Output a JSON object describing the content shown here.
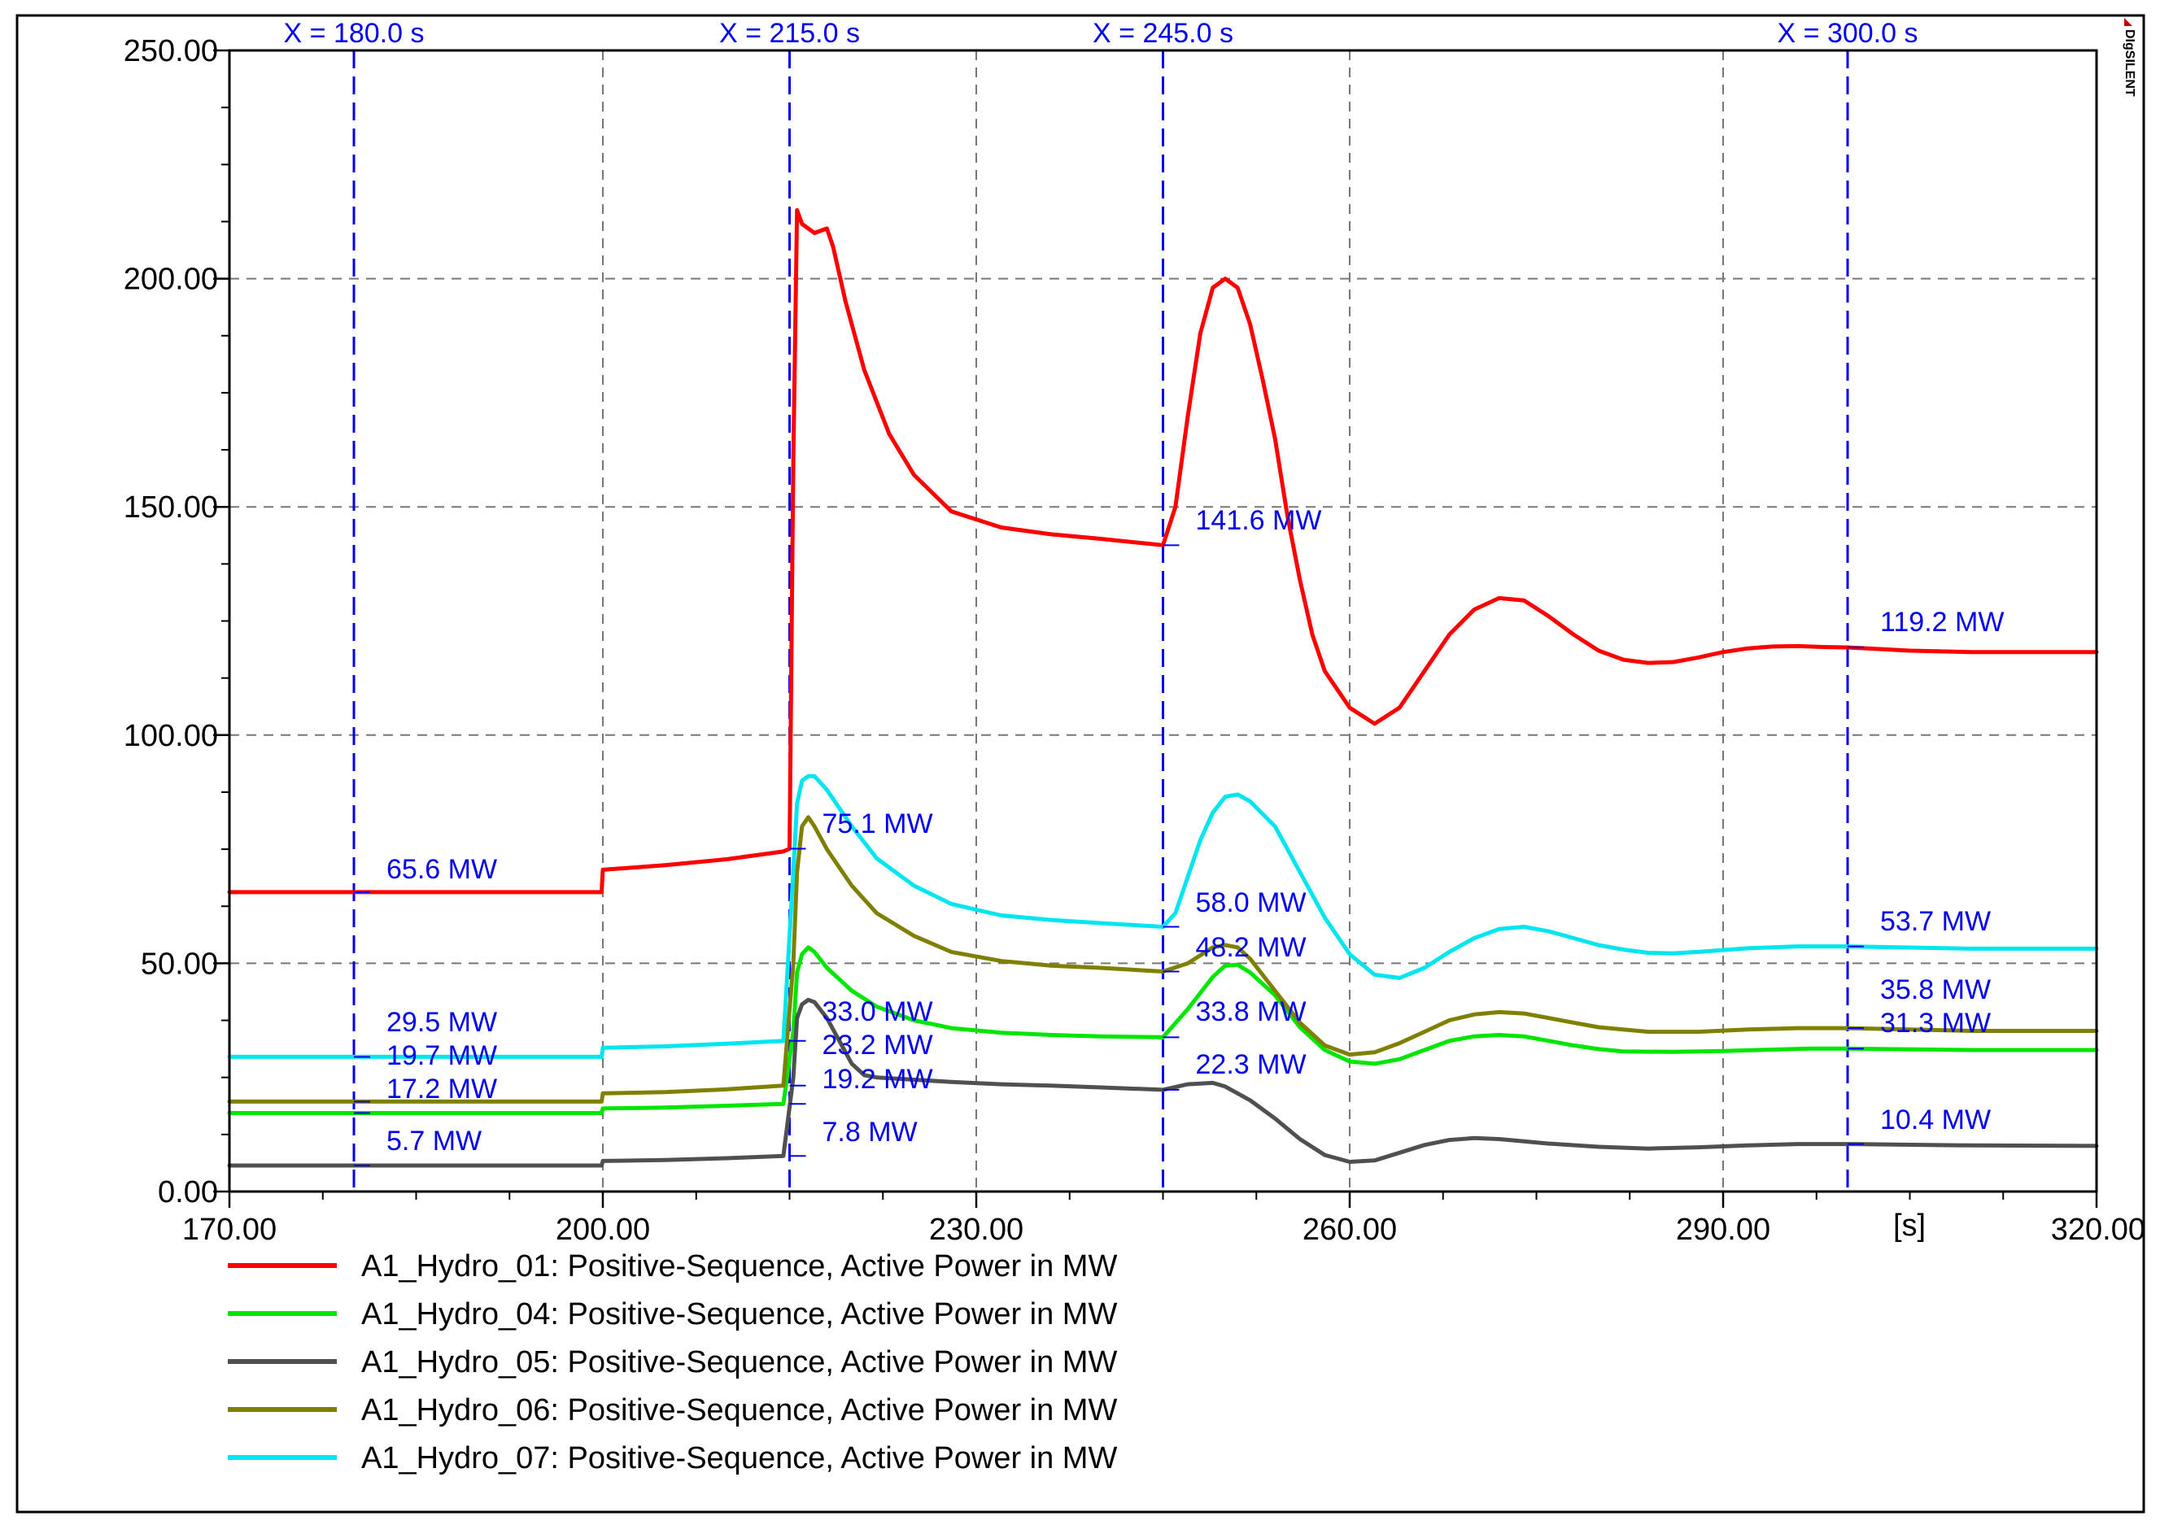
{
  "brand": "DIgSILENT",
  "x_unit_label": "[s]",
  "chart_data": {
    "type": "line",
    "title": "",
    "xlabel": "[s]",
    "ylabel": "",
    "xlim": [
      170,
      320
    ],
    "ylim": [
      0,
      250
    ],
    "x_ticks": [
      170,
      200,
      230,
      260,
      290,
      320
    ],
    "x_tick_labels": [
      "170.00",
      "200.00",
      "230.00",
      "260.00",
      "290.00",
      "320.00"
    ],
    "y_ticks": [
      0,
      50,
      100,
      150,
      200,
      250
    ],
    "y_tick_labels": [
      "0.00",
      "50.00",
      "100.00",
      "150.00",
      "200.00",
      "250.00"
    ],
    "grid": true,
    "legend_position": "bottom",
    "cursors": [
      {
        "x": 180,
        "label": "X =  180.0 s"
      },
      {
        "x": 215,
        "label": "X =  215.0 s"
      },
      {
        "x": 245,
        "label": "X =  245.0 s"
      },
      {
        "x": 300,
        "label": "X =  300.0 s"
      }
    ],
    "series": [
      {
        "name": "A1_Hydro_01: Positive-Sequence, Active Power in MW",
        "color": "#ff0000",
        "points": [
          [
            170,
            65.6
          ],
          [
            180,
            65.6
          ],
          [
            199.9,
            65.6
          ],
          [
            200,
            70.5
          ],
          [
            205,
            71.5
          ],
          [
            210,
            72.8
          ],
          [
            214.5,
            74.5
          ],
          [
            215,
            75.1
          ],
          [
            215.3,
            160
          ],
          [
            215.6,
            215
          ],
          [
            216,
            212
          ],
          [
            217,
            210
          ],
          [
            218,
            211
          ],
          [
            218.5,
            207
          ],
          [
            219.5,
            195
          ],
          [
            221,
            180
          ],
          [
            223,
            166
          ],
          [
            225,
            157
          ],
          [
            228,
            149
          ],
          [
            232,
            145.5
          ],
          [
            236,
            144
          ],
          [
            240,
            143
          ],
          [
            245,
            141.6
          ],
          [
            246,
            150
          ],
          [
            247,
            170
          ],
          [
            248,
            188
          ],
          [
            249,
            198
          ],
          [
            250,
            200
          ],
          [
            251,
            198
          ],
          [
            252,
            190
          ],
          [
            253,
            178
          ],
          [
            254,
            165
          ],
          [
            255,
            148
          ],
          [
            256,
            134
          ],
          [
            257,
            122
          ],
          [
            258,
            114
          ],
          [
            260,
            106
          ],
          [
            262,
            102.5
          ],
          [
            264,
            106
          ],
          [
            266,
            114
          ],
          [
            268,
            122
          ],
          [
            270,
            127.5
          ],
          [
            272,
            130
          ],
          [
            274,
            129.5
          ],
          [
            276,
            126
          ],
          [
            278,
            122
          ],
          [
            280,
            118.5
          ],
          [
            282,
            116.5
          ],
          [
            284,
            115.8
          ],
          [
            286,
            116
          ],
          [
            288,
            117
          ],
          [
            290,
            118.2
          ],
          [
            292,
            119
          ],
          [
            294,
            119.4
          ],
          [
            296,
            119.5
          ],
          [
            298,
            119.3
          ],
          [
            300,
            119.2
          ],
          [
            305,
            118.5
          ],
          [
            310,
            118.2
          ],
          [
            320,
            118.2
          ]
        ]
      },
      {
        "name": "A1_Hydro_04: Positive-Sequence, Active Power in MW",
        "color": "#00e600",
        "points": [
          [
            170,
            17.2
          ],
          [
            180,
            17.2
          ],
          [
            199.9,
            17.2
          ],
          [
            200,
            18.2
          ],
          [
            205,
            18.4
          ],
          [
            210,
            18.8
          ],
          [
            214.5,
            19.2
          ],
          [
            215.3,
            35
          ],
          [
            215.6,
            48
          ],
          [
            216,
            52
          ],
          [
            216.5,
            53.5
          ],
          [
            217,
            52.5
          ],
          [
            218,
            49
          ],
          [
            220,
            44
          ],
          [
            222,
            40.5
          ],
          [
            225,
            37.5
          ],
          [
            228,
            35.8
          ],
          [
            232,
            34.8
          ],
          [
            236,
            34.3
          ],
          [
            240,
            34
          ],
          [
            245,
            33.8
          ],
          [
            247,
            40
          ],
          [
            249,
            47
          ],
          [
            250,
            49.5
          ],
          [
            251,
            49.7
          ],
          [
            252,
            48
          ],
          [
            254,
            43
          ],
          [
            256,
            36
          ],
          [
            258,
            31
          ],
          [
            260,
            28.5
          ],
          [
            262,
            28
          ],
          [
            264,
            29
          ],
          [
            266,
            31
          ],
          [
            268,
            33
          ],
          [
            270,
            34
          ],
          [
            272,
            34.3
          ],
          [
            274,
            34
          ],
          [
            276,
            33
          ],
          [
            278,
            32
          ],
          [
            280,
            31.2
          ],
          [
            282,
            30.7
          ],
          [
            286,
            30.6
          ],
          [
            290,
            30.8
          ],
          [
            294,
            31.1
          ],
          [
            297,
            31.3
          ],
          [
            300,
            31.3
          ],
          [
            310,
            31
          ],
          [
            320,
            31
          ]
        ]
      },
      {
        "name": "A1_Hydro_05: Positive-Sequence, Active Power in MW",
        "color": "#505050",
        "points": [
          [
            170,
            5.7
          ],
          [
            180,
            5.7
          ],
          [
            199.9,
            5.7
          ],
          [
            200,
            6.7
          ],
          [
            205,
            6.9
          ],
          [
            210,
            7.3
          ],
          [
            214.5,
            7.8
          ],
          [
            215.3,
            25
          ],
          [
            215.6,
            38
          ],
          [
            216,
            41
          ],
          [
            216.5,
            42
          ],
          [
            217,
            41.5
          ],
          [
            218,
            38
          ],
          [
            219,
            33
          ],
          [
            220,
            28
          ],
          [
            221,
            25.5
          ],
          [
            222,
            25
          ],
          [
            225,
            24.5
          ],
          [
            228,
            24
          ],
          [
            232,
            23.5
          ],
          [
            236,
            23.2
          ],
          [
            240,
            22.8
          ],
          [
            245,
            22.3
          ],
          [
            247,
            23.5
          ],
          [
            249,
            23.8
          ],
          [
            250,
            23
          ],
          [
            252,
            20
          ],
          [
            254,
            16
          ],
          [
            256,
            11.5
          ],
          [
            258,
            8
          ],
          [
            260,
            6.5
          ],
          [
            262,
            6.8
          ],
          [
            264,
            8.5
          ],
          [
            266,
            10.2
          ],
          [
            268,
            11.3
          ],
          [
            270,
            11.7
          ],
          [
            272,
            11.5
          ],
          [
            274,
            11
          ],
          [
            276,
            10.5
          ],
          [
            280,
            9.8
          ],
          [
            284,
            9.4
          ],
          [
            288,
            9.7
          ],
          [
            292,
            10.1
          ],
          [
            296,
            10.4
          ],
          [
            300,
            10.4
          ],
          [
            310,
            10.1
          ],
          [
            320,
            10
          ]
        ]
      },
      {
        "name": "A1_Hydro_06: Positive-Sequence, Active Power in MW",
        "color": "#808000",
        "points": [
          [
            170,
            19.7
          ],
          [
            180,
            19.7
          ],
          [
            199.9,
            19.7
          ],
          [
            200,
            21.5
          ],
          [
            205,
            21.8
          ],
          [
            210,
            22.4
          ],
          [
            214.5,
            23.2
          ],
          [
            215.3,
            50
          ],
          [
            215.6,
            70
          ],
          [
            216,
            80
          ],
          [
            216.5,
            82
          ],
          [
            217,
            80
          ],
          [
            218,
            75
          ],
          [
            220,
            67
          ],
          [
            222,
            61
          ],
          [
            225,
            56
          ],
          [
            228,
            52.5
          ],
          [
            232,
            50.5
          ],
          [
            236,
            49.5
          ],
          [
            240,
            49
          ],
          [
            245,
            48.2
          ],
          [
            247,
            50
          ],
          [
            249,
            53.5
          ],
          [
            250,
            54
          ],
          [
            251,
            53.5
          ],
          [
            252,
            51
          ],
          [
            254,
            44
          ],
          [
            256,
            37
          ],
          [
            258,
            32
          ],
          [
            260,
            30
          ],
          [
            262,
            30.5
          ],
          [
            264,
            32.5
          ],
          [
            266,
            35
          ],
          [
            268,
            37.5
          ],
          [
            270,
            38.8
          ],
          [
            272,
            39.3
          ],
          [
            274,
            39
          ],
          [
            276,
            38
          ],
          [
            278,
            37
          ],
          [
            280,
            36
          ],
          [
            284,
            35
          ],
          [
            288,
            35
          ],
          [
            292,
            35.5
          ],
          [
            296,
            35.8
          ],
          [
            300,
            35.8
          ],
          [
            310,
            35.2
          ],
          [
            320,
            35.2
          ]
        ]
      },
      {
        "name": "A1_Hydro_07: Positive-Sequence, Active Power in MW",
        "color": "#00e5ee",
        "points": [
          [
            170,
            29.5
          ],
          [
            180,
            29.5
          ],
          [
            199.9,
            29.5
          ],
          [
            200,
            31.5
          ],
          [
            205,
            31.8
          ],
          [
            210,
            32.4
          ],
          [
            214.5,
            33
          ],
          [
            215.3,
            70
          ],
          [
            215.6,
            85
          ],
          [
            216,
            90
          ],
          [
            216.5,
            91
          ],
          [
            217,
            91
          ],
          [
            218,
            88
          ],
          [
            220,
            80
          ],
          [
            222,
            73
          ],
          [
            225,
            67
          ],
          [
            228,
            63
          ],
          [
            232,
            60.5
          ],
          [
            236,
            59.5
          ],
          [
            240,
            58.8
          ],
          [
            245,
            58
          ],
          [
            246,
            61
          ],
          [
            247,
            69
          ],
          [
            248,
            77
          ],
          [
            249,
            83
          ],
          [
            250,
            86.5
          ],
          [
            251,
            87
          ],
          [
            252,
            85.5
          ],
          [
            254,
            80
          ],
          [
            256,
            70
          ],
          [
            258,
            60
          ],
          [
            260,
            52
          ],
          [
            262,
            47.5
          ],
          [
            264,
            46.8
          ],
          [
            266,
            49
          ],
          [
            268,
            52.5
          ],
          [
            270,
            55.5
          ],
          [
            272,
            57.5
          ],
          [
            274,
            58
          ],
          [
            276,
            57
          ],
          [
            278,
            55.5
          ],
          [
            280,
            54
          ],
          [
            282,
            53
          ],
          [
            284,
            52.3
          ],
          [
            286,
            52.2
          ],
          [
            288,
            52.5
          ],
          [
            292,
            53.3
          ],
          [
            296,
            53.7
          ],
          [
            300,
            53.7
          ],
          [
            310,
            53.2
          ],
          [
            320,
            53.2
          ]
        ]
      }
    ],
    "annotations": [
      {
        "x": 180,
        "y": 65.6,
        "text": "65.6 MW"
      },
      {
        "x": 180,
        "y": 29.5,
        "text": "29.5 MW"
      },
      {
        "x": 180,
        "y": 19.7,
        "text": "19.7 MW"
      },
      {
        "x": 180,
        "y": 17.2,
        "text": "17.2 MW"
      },
      {
        "x": 180,
        "y": 5.7,
        "text": "5.7 MW"
      },
      {
        "x": 215,
        "y": 75.1,
        "text": "75.1 MW"
      },
      {
        "x": 215,
        "y": 33.0,
        "text": "33.0 MW"
      },
      {
        "x": 215,
        "y": 23.2,
        "text": "23.2 MW"
      },
      {
        "x": 215,
        "y": 19.2,
        "text": "19.2 MW"
      },
      {
        "x": 215,
        "y": 7.8,
        "text": "7.8 MW"
      },
      {
        "x": 245,
        "y": 141.6,
        "text": "141.6 MW"
      },
      {
        "x": 245,
        "y": 58.0,
        "text": "58.0 MW"
      },
      {
        "x": 245,
        "y": 48.2,
        "text": "48.2 MW"
      },
      {
        "x": 245,
        "y": 33.8,
        "text": "33.8 MW"
      },
      {
        "x": 245,
        "y": 22.3,
        "text": "22.3 MW"
      },
      {
        "x": 300,
        "y": 119.2,
        "text": "119.2 MW"
      },
      {
        "x": 300,
        "y": 53.7,
        "text": "53.7 MW"
      },
      {
        "x": 300,
        "y": 35.8,
        "text": "35.8 MW"
      },
      {
        "x": 300,
        "y": 31.3,
        "text": "31.3 MW"
      },
      {
        "x": 300,
        "y": 10.4,
        "text": "10.4 MW"
      }
    ]
  }
}
